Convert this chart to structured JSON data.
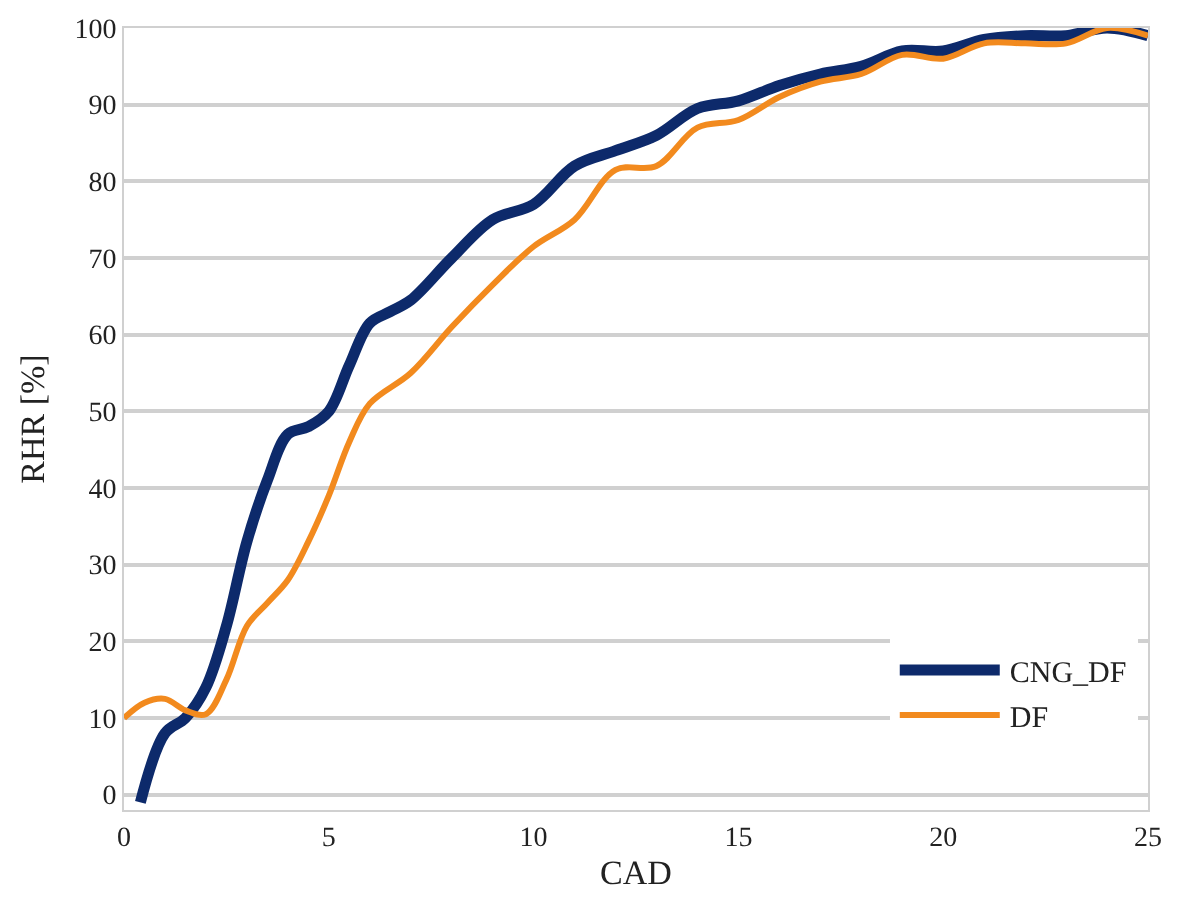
{
  "chart_data": {
    "type": "line",
    "xlabel": "CAD",
    "ylabel": "RHR [%]",
    "xlim": [
      0,
      25
    ],
    "xticks": [
      0,
      5,
      10,
      15,
      20,
      25
    ],
    "ylim": [
      -2,
      100
    ],
    "yticks": [
      0,
      10,
      20,
      30,
      40,
      50,
      60,
      70,
      80,
      90,
      100
    ],
    "grid": "y",
    "legend": "bottom right",
    "marker": "none",
    "line_style": "solid",
    "series": [
      {
        "name": "CNG_DF",
        "color": "#0d2a6b",
        "x": [
          0.4,
          1,
          1.5,
          2,
          2.5,
          3,
          3.5,
          4,
          4.5,
          5,
          5.5,
          6,
          6.5,
          7,
          8,
          9,
          10,
          11,
          12,
          13,
          14,
          15,
          16,
          17,
          18,
          19,
          20,
          21,
          22,
          23,
          24,
          25
        ],
        "values": [
          -1,
          8,
          10,
          14,
          22,
          33,
          41,
          47,
          48,
          50,
          56,
          61.5,
          63,
          64.5,
          70,
          75,
          77,
          82,
          84,
          86,
          89.5,
          90.5,
          92.5,
          94,
          95,
          97,
          97,
          98.5,
          99,
          99,
          100,
          99
        ]
      },
      {
        "name": "DF",
        "color": "#f28a1e",
        "x": [
          0,
          0.5,
          1,
          1.5,
          2,
          2.5,
          3,
          3.5,
          4,
          4.5,
          5,
          5.5,
          6,
          7,
          8,
          9,
          10,
          11,
          12,
          13,
          14,
          15,
          16,
          17,
          18,
          19,
          20,
          21,
          22,
          23,
          24,
          25
        ],
        "values": [
          10,
          12,
          12.5,
          11,
          10.5,
          15,
          22,
          25,
          28,
          33,
          39,
          46,
          51,
          55,
          61,
          66.5,
          71.5,
          75,
          81.5,
          82,
          87,
          88,
          91,
          93,
          94,
          96.5,
          96,
          98,
          98,
          98,
          100,
          99
        ]
      }
    ]
  }
}
